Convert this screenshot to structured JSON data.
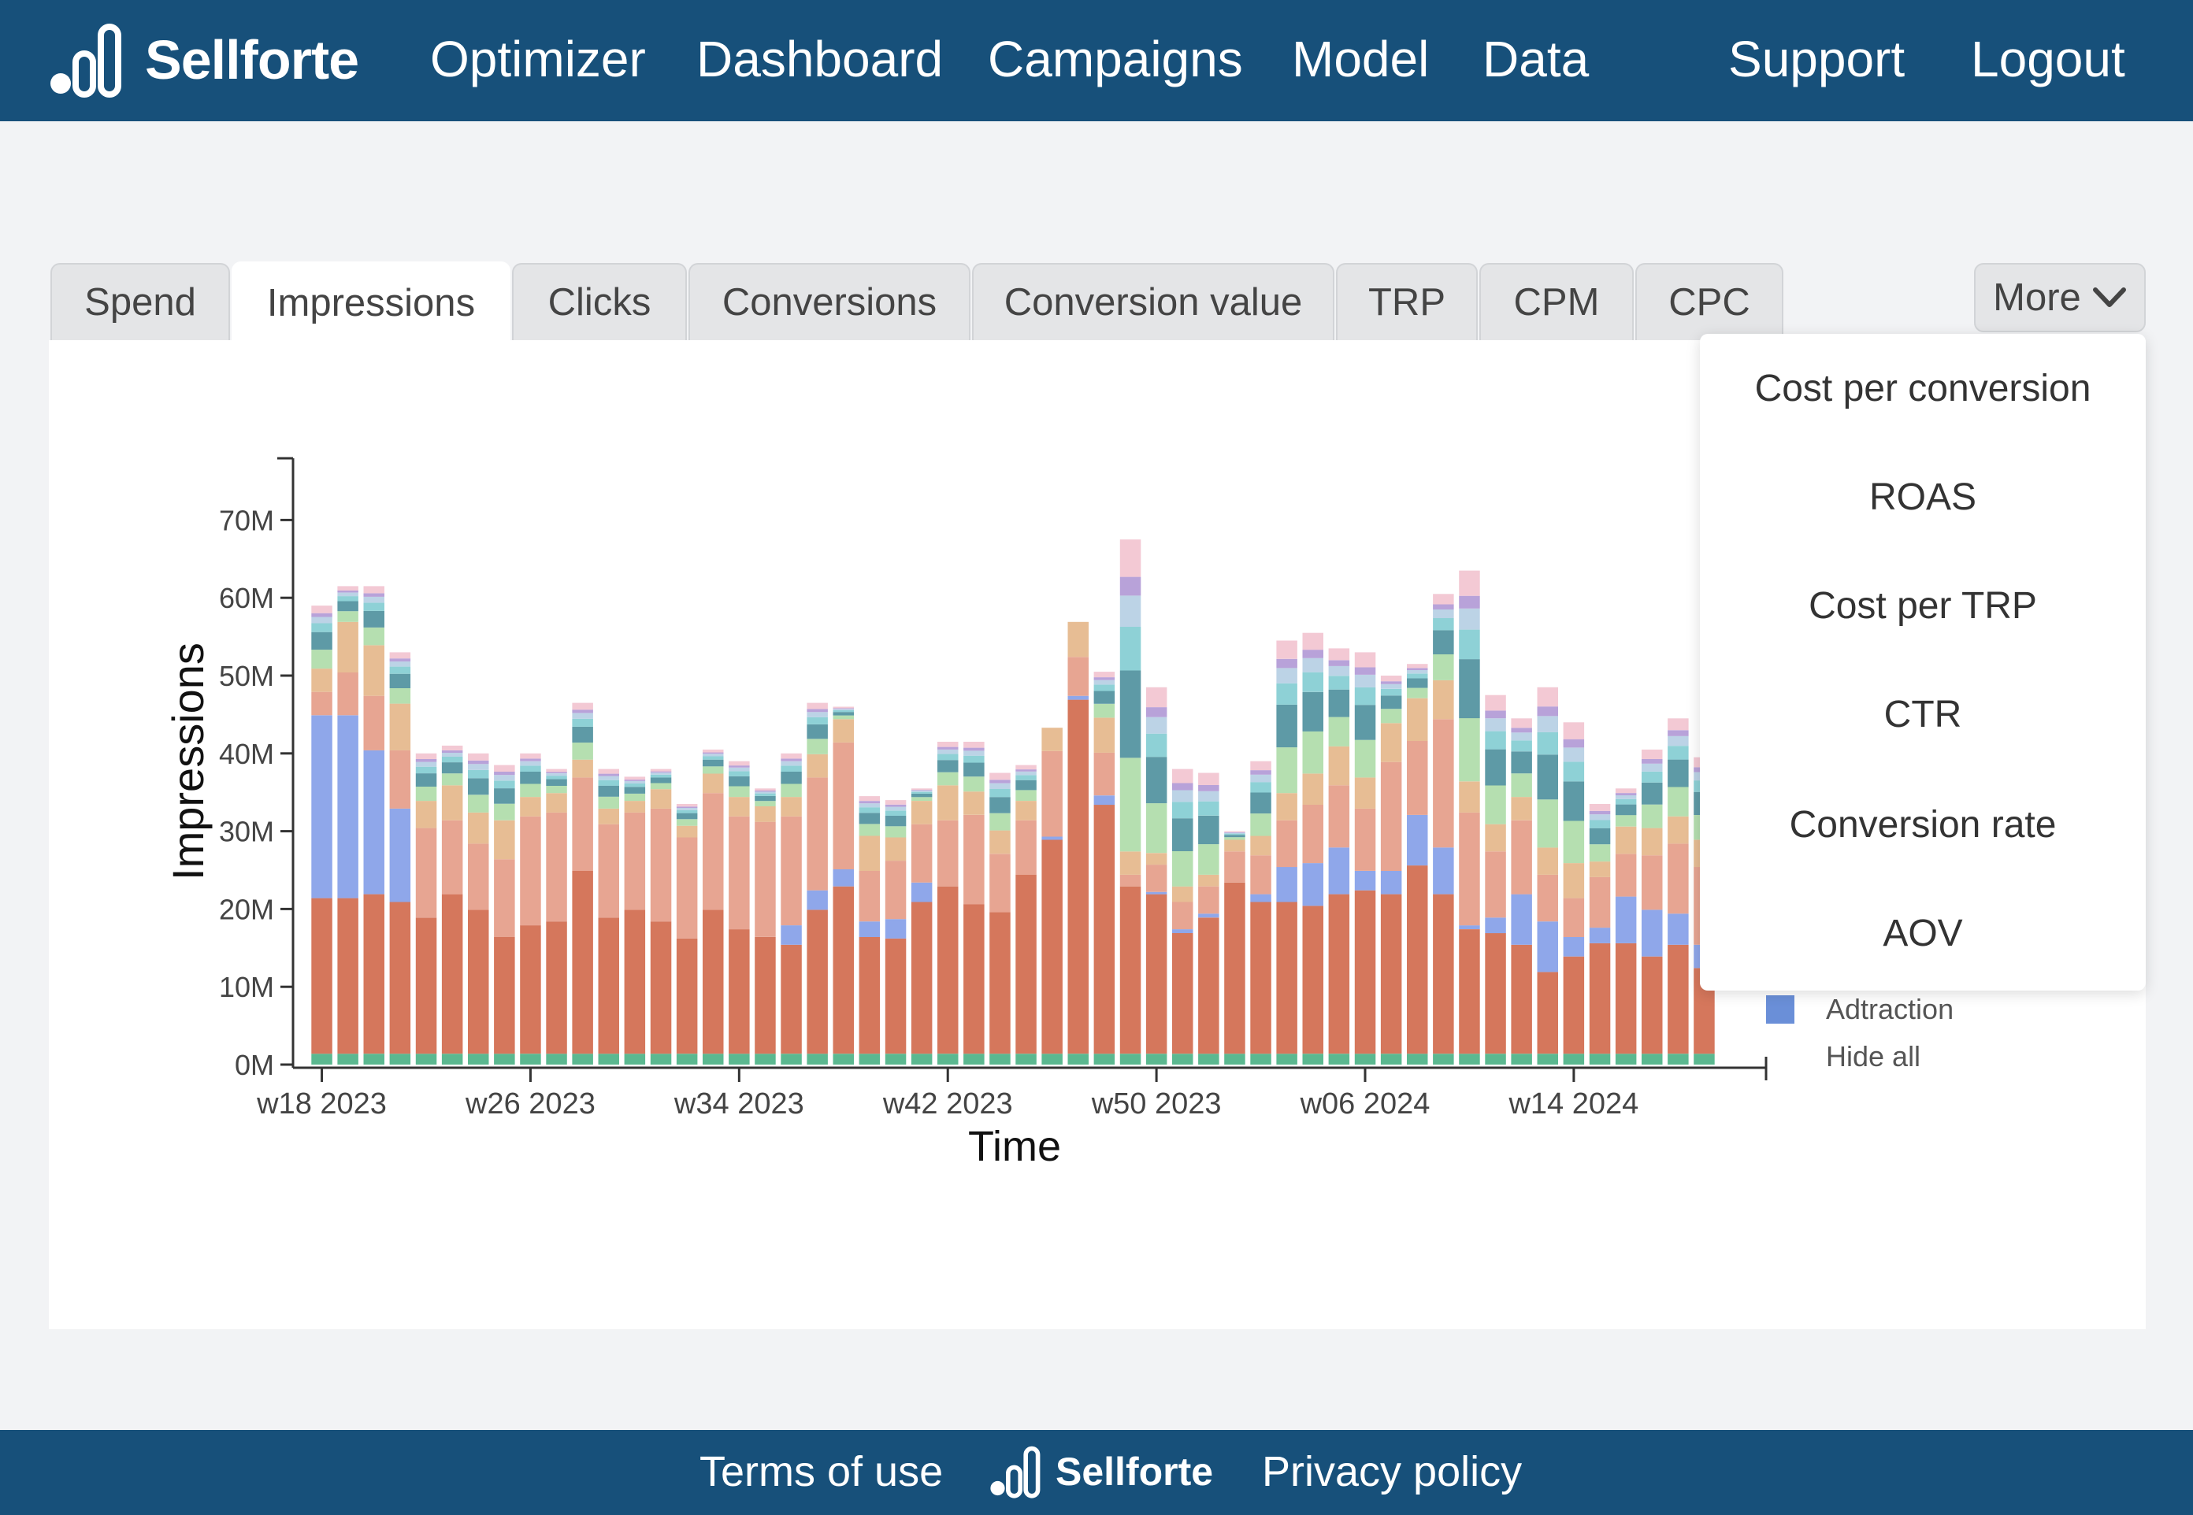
{
  "brand": {
    "name": "Sellforte",
    "icon": "sellforte-logo-icon"
  },
  "nav": {
    "items": [
      "Optimizer",
      "Dashboard",
      "Campaigns",
      "Model",
      "Data"
    ],
    "support": "Support",
    "logout": "Logout"
  },
  "tabs": {
    "items": [
      "Spend",
      "Impressions",
      "Clicks",
      "Conversions",
      "Conversion value",
      "TRP",
      "CPM",
      "CPC"
    ],
    "active": "Impressions",
    "more_label": "More",
    "more_icon": "chevron-down-icon"
  },
  "more_menu": {
    "items": [
      "Cost per conversion",
      "ROAS",
      "Cost per TRP",
      "CTR",
      "Conversion rate",
      "AOV"
    ]
  },
  "legend": {
    "visible_entry": "Adtraction",
    "visible_entry_color": "#6a8fd8",
    "hide_all": "Hide all"
  },
  "chart_data": {
    "type": "bar",
    "stacked": true,
    "xlabel": "Time",
    "ylabel": "Impressions",
    "yticks": [
      "0M",
      "10M",
      "20M",
      "30M",
      "40M",
      "50M",
      "60M",
      "70M"
    ],
    "ylim": [
      0,
      78
    ],
    "xticks": [
      {
        "index": 0,
        "label": "w18 2023"
      },
      {
        "index": 8,
        "label": "w26 2023"
      },
      {
        "index": 16,
        "label": "w34 2023"
      },
      {
        "index": 24,
        "label": "w42 2023"
      },
      {
        "index": 32,
        "label": "w50 2023"
      },
      {
        "index": 40,
        "label": "w06 2024"
      },
      {
        "index": 48,
        "label": "w14 2024"
      }
    ],
    "value_unit": "M impressions",
    "series_colors": {
      "base_green": "#5bb890",
      "orange_red": "#d5775c",
      "blue": "#8fa7ea",
      "peach": "#e7a592",
      "tan": "#e7bd94",
      "light_green": "#b5dfb0",
      "teal": "#5e9aa6",
      "light_teal": "#8ed1d6",
      "light_blue": "#bcd3e6",
      "pink": "#f3c9d4",
      "purple": "#b8a2d9"
    },
    "totals": [
      59,
      61.5,
      61.5,
      53,
      40,
      41,
      40,
      38.5,
      40,
      38,
      46.5,
      38,
      37,
      38,
      33.5,
      40.5,
      39,
      35.5,
      40,
      46.5,
      46,
      34.5,
      34,
      35.5,
      41.5,
      41.5,
      37.5,
      38.5,
      40,
      48,
      50.5,
      67.5,
      48.5,
      38,
      37.5,
      30,
      39,
      54.5,
      55.5,
      53.5,
      53,
      50,
      51.5,
      60.5,
      63.5,
      47.5,
      44.5,
      48.5,
      44,
      33.5,
      35.5,
      40.5,
      44.5,
      39.5
    ],
    "orange_red_values": [
      20,
      20,
      20.5,
      19.5,
      17.5,
      20.5,
      18.5,
      15,
      16.5,
      17,
      23.5,
      17.5,
      18.5,
      17,
      14.8,
      18.5,
      16,
      15,
      14,
      18.5,
      21.5,
      15,
      14.8,
      19.5,
      21.5,
      19.2,
      18.2,
      23,
      27.5,
      45.5,
      32,
      21.5,
      20.5,
      15.5,
      17.5,
      22,
      19.5,
      19.5,
      19,
      20.5,
      21,
      20.5,
      24.2,
      20.5,
      16,
      15.5,
      14,
      10.5,
      12.5,
      14.2,
      14.2,
      12.5,
      14,
      11
    ],
    "blue_values": [
      23.5,
      23.5,
      18.5,
      12,
      0,
      0,
      0,
      0,
      0,
      0,
      0,
      0,
      0,
      0,
      0,
      0,
      0,
      0,
      2.5,
      2.5,
      2.2,
      2,
      2.5,
      2.5,
      0,
      0,
      0,
      0,
      0.4,
      0.5,
      1.2,
      0,
      0.3,
      0.5,
      0.5,
      0,
      1,
      4.5,
      5.5,
      6,
      2.5,
      3,
      6.5,
      6,
      0.5,
      2,
      6.5,
      6.5,
      2.5,
      2,
      6,
      6,
      4,
      3
    ],
    "peach_values": [
      3,
      5.5,
      7,
      7.5,
      11.5,
      9.5,
      8.5,
      10,
      14,
      14,
      12,
      12,
      12.5,
      14.5,
      13,
      15,
      14.5,
      14.8,
      14,
      14.5,
      16.3,
      6.5,
      7.5,
      7.5,
      8.5,
      11.5,
      7.5,
      7,
      11,
      5,
      5.5,
      1.5,
      3.5,
      3.5,
      3.5,
      4,
      5,
      6,
      7.5,
      8,
      8,
      14,
      9.5,
      16.5,
      14.5,
      8.5,
      9.5,
      6,
      5,
      6.5,
      5.5,
      7,
      9,
      10
    ],
    "tan_values": [
      3,
      6.5,
      6.5,
      6,
      3.5,
      4.5,
      4,
      5,
      2.5,
      2.5,
      2.3,
      2,
      1.5,
      2.5,
      1.5,
      2.5,
      2.5,
      2,
      2.5,
      3,
      3,
      4.5,
      3,
      3,
      4.5,
      3,
      3,
      2.5,
      3,
      4.5,
      4.5,
      3,
      1.5,
      2,
      1.5,
      1.5,
      2.5,
      3.5,
      4,
      5,
      4,
      5,
      5.5,
      5,
      4,
      3.5,
      3,
      3.5,
      4.5,
      2,
      3.5,
      3.5,
      3.5,
      3.5
    ]
  }
}
